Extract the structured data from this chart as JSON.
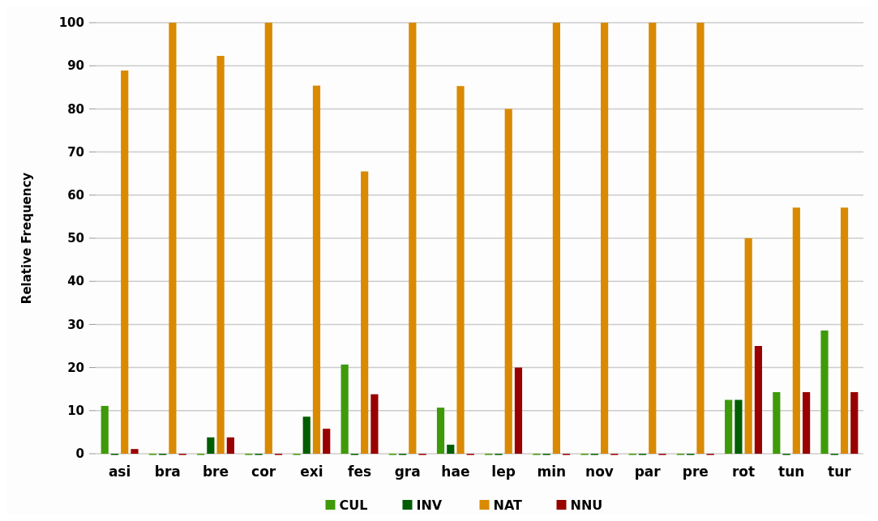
{
  "chart_data": {
    "type": "bar",
    "ylabel": "Relative Frequency",
    "categories": [
      "asi",
      "bra",
      "bre",
      "cor",
      "exi",
      "fes",
      "gra",
      "hae",
      "lep",
      "min",
      "nov",
      "par",
      "pre",
      "rot",
      "tun",
      "tur"
    ],
    "series": [
      {
        "name": "CUL",
        "color": "#3f9a0a",
        "values": [
          11.1,
          0,
          0,
          0,
          0,
          20.7,
          0,
          10.7,
          0,
          0,
          0,
          0,
          0,
          12.5,
          14.3,
          28.6
        ]
      },
      {
        "name": "INV",
        "color": "#005e00",
        "values": [
          0,
          0,
          3.8,
          0,
          8.6,
          0,
          0,
          2.1,
          0,
          0,
          0,
          0,
          0,
          12.5,
          0,
          0
        ]
      },
      {
        "name": "NAT",
        "color": "#d98a00",
        "values": [
          88.9,
          100,
          92.3,
          100,
          85.4,
          65.5,
          100,
          85.3,
          80,
          100,
          100,
          100,
          100,
          50,
          57.1,
          57.1
        ]
      },
      {
        "name": "NNU",
        "color": "#990000",
        "values": [
          1.1,
          0,
          3.8,
          0,
          5.8,
          13.8,
          0,
          0,
          20,
          0,
          0,
          0,
          0,
          25,
          14.3,
          14.3
        ]
      }
    ],
    "ylim": [
      0,
      100
    ],
    "yticks": [
      0,
      10,
      20,
      30,
      40,
      50,
      60,
      70,
      80,
      90,
      100
    ],
    "grid": "y",
    "legend": "bottom"
  }
}
